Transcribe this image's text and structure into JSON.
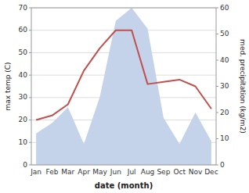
{
  "chart_data": {
    "type": "line",
    "xlabel": "date (month)",
    "ylabel": "max temp (C)",
    "y2label": "med. precipitation (kg/m2)",
    "categories": [
      "Jan",
      "Feb",
      "Mar",
      "Apr",
      "May",
      "Jun",
      "Jul",
      "Aug",
      "Sep",
      "Oct",
      "Nov",
      "Dec"
    ],
    "series": [
      {
        "type": "area",
        "axis": "y2",
        "color": "#c5d3ea",
        "values": [
          12,
          16,
          22,
          8,
          26,
          55,
          60,
          52,
          18,
          8,
          20,
          9
        ]
      },
      {
        "type": "line",
        "color": "#c0504d",
        "values": [
          20,
          22,
          27,
          42,
          52,
          60,
          60,
          36,
          37,
          38,
          35,
          25
        ]
      }
    ],
    "ylim": [
      0,
      70
    ],
    "yticks": [
      0,
      10,
      20,
      30,
      40,
      50,
      60,
      70
    ],
    "y2lim": [
      0,
      60
    ],
    "y2ticks": [
      0,
      10,
      20,
      30,
      40,
      50,
      60
    ],
    "grid": true
  }
}
